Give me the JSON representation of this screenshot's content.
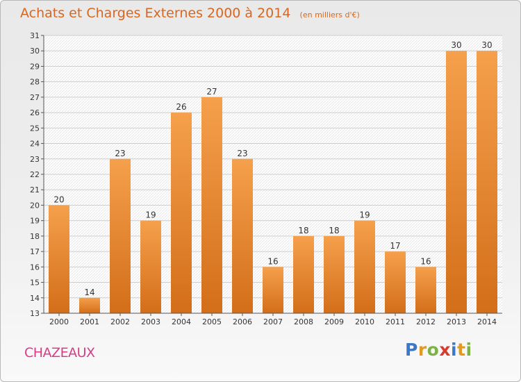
{
  "chart_data": {
    "type": "bar",
    "title": "Achats et Charges Externes 2000 à 2014",
    "subtitle": "(en milliers d'€)",
    "categories": [
      "2000",
      "2001",
      "2002",
      "2003",
      "2004",
      "2005",
      "2006",
      "2007",
      "2008",
      "2009",
      "2010",
      "2011",
      "2012",
      "2013",
      "2014"
    ],
    "values": [
      20,
      14,
      23,
      19,
      26,
      27,
      23,
      16,
      18,
      18,
      19,
      17,
      16,
      30,
      30
    ],
    "ylim": [
      13,
      31
    ],
    "yticks": [
      13,
      14,
      15,
      16,
      17,
      18,
      19,
      20,
      21,
      22,
      23,
      24,
      25,
      26,
      27,
      28,
      29,
      30,
      31
    ],
    "grid": true,
    "legend": "none",
    "bar_color_top": "#f5a04c",
    "bar_color_bottom": "#d36e1a"
  },
  "footer": {
    "commune": "CHAZEAUX",
    "logo_letters": [
      "P",
      "r",
      "o",
      "x",
      "i",
      "t",
      "i"
    ],
    "logo_colors": [
      "#3c78c8",
      "#e39a1d",
      "#7cb342",
      "#d83a2f",
      "#3c78c8",
      "#e39a1d",
      "#7cb342"
    ]
  },
  "colors": {
    "title": "#d8661e",
    "commune": "#d83c86"
  }
}
